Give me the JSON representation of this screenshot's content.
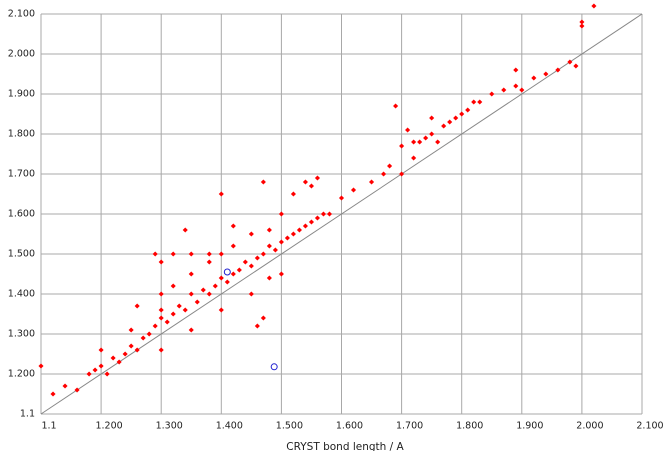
{
  "chart_data": {
    "type": "scatter",
    "x_label": "CRYST bond length / A",
    "xlim": [
      1.1,
      2.1
    ],
    "ylim": [
      1.1,
      2.1
    ],
    "xticks": [
      1.1,
      {
        "value": 1.2,
        "label": "1.200"
      },
      {
        "value": 1.3,
        "label": "1.300"
      },
      {
        "value": 1.4,
        "label": "1.400"
      },
      {
        "value": 1.5,
        "label": "1.500"
      },
      {
        "value": 1.6,
        "label": "1.600"
      },
      {
        "value": 1.7,
        "label": "1.700"
      },
      {
        "value": 1.8,
        "label": "1.800"
      },
      {
        "value": 1.9,
        "label": "1.900"
      },
      {
        "value": 2.0,
        "label": "2.000"
      },
      {
        "value": 2.1,
        "label": "2.100"
      }
    ],
    "yticks": [
      1.1,
      {
        "value": 1.2,
        "label": "1.200"
      },
      {
        "value": 1.3,
        "label": "1.300"
      },
      {
        "value": 1.4,
        "label": "1.400"
      },
      {
        "value": 1.5,
        "label": "1.500"
      },
      {
        "value": 1.6,
        "label": "1.600"
      },
      {
        "value": 1.7,
        "label": "1.700"
      },
      {
        "value": 1.8,
        "label": "1.800"
      },
      {
        "value": 1.9,
        "label": "1.900"
      },
      {
        "value": 2.0,
        "label": "2.000"
      },
      {
        "value": 2.1,
        "label": "2.100"
      }
    ],
    "grid": true,
    "series": [
      {
        "color": "#ff0000",
        "marker": "filled",
        "x": [
          1.1,
          1.12,
          1.14,
          1.16,
          1.18,
          1.19,
          1.2,
          1.21,
          1.22,
          1.23,
          1.24,
          1.25,
          1.26,
          1.27,
          1.28,
          1.29,
          1.3,
          1.3,
          1.31,
          1.32,
          1.33,
          1.34,
          1.35,
          1.36,
          1.37,
          1.38,
          1.39,
          1.4,
          1.41,
          1.42,
          1.43,
          1.44,
          1.45,
          1.46,
          1.47,
          1.48,
          1.49,
          1.5,
          1.51,
          1.52,
          1.53,
          1.54,
          1.55,
          1.56,
          1.57,
          1.58,
          1.2,
          1.25,
          1.3,
          1.32,
          1.35,
          1.38,
          1.4,
          1.42,
          1.45,
          1.48,
          1.29,
          1.32,
          1.35,
          1.38,
          1.3,
          1.35,
          1.4,
          1.45,
          1.48,
          1.5,
          1.47,
          1.46,
          1.4,
          1.47,
          1.5,
          1.52,
          1.54,
          1.56,
          1.55,
          1.42,
          1.34,
          1.3,
          1.26,
          1.6,
          1.62,
          1.65,
          1.67,
          1.68,
          1.7,
          1.72,
          1.73,
          1.74,
          1.75,
          1.76,
          1.77,
          1.78,
          1.79,
          1.8,
          1.75,
          1.72,
          1.7,
          1.71,
          1.69,
          1.81,
          1.83,
          1.85,
          1.87,
          1.89,
          1.9,
          1.92,
          1.94,
          1.96,
          1.98,
          1.99,
          1.89,
          1.82,
          2.0,
          2.0,
          2.02
        ],
        "values": [
          1.22,
          1.15,
          1.17,
          1.16,
          1.2,
          1.21,
          1.22,
          1.2,
          1.24,
          1.23,
          1.25,
          1.27,
          1.26,
          1.29,
          1.3,
          1.32,
          1.34,
          1.36,
          1.33,
          1.35,
          1.37,
          1.36,
          1.4,
          1.38,
          1.41,
          1.4,
          1.42,
          1.44,
          1.43,
          1.45,
          1.46,
          1.48,
          1.47,
          1.49,
          1.5,
          1.52,
          1.51,
          1.53,
          1.54,
          1.55,
          1.56,
          1.57,
          1.58,
          1.59,
          1.6,
          1.6,
          1.26,
          1.31,
          1.4,
          1.42,
          1.45,
          1.48,
          1.5,
          1.52,
          1.55,
          1.56,
          1.5,
          1.5,
          1.5,
          1.5,
          1.26,
          1.31,
          1.36,
          1.4,
          1.44,
          1.45,
          1.34,
          1.32,
          1.65,
          1.68,
          1.6,
          1.65,
          1.68,
          1.69,
          1.67,
          1.57,
          1.56,
          1.48,
          1.37,
          1.64,
          1.66,
          1.68,
          1.7,
          1.72,
          1.7,
          1.74,
          1.78,
          1.79,
          1.8,
          1.78,
          1.82,
          1.83,
          1.84,
          1.85,
          1.84,
          1.78,
          1.77,
          1.81,
          1.87,
          1.86,
          1.88,
          1.9,
          1.91,
          1.92,
          1.91,
          1.94,
          1.95,
          1.96,
          1.98,
          1.97,
          1.96,
          1.88,
          2.07,
          2.08,
          2.12
        ]
      },
      {
        "color": "#2020d0",
        "marker": "hollow",
        "x": [
          1.41,
          1.488
        ],
        "values": [
          1.455,
          1.218
        ]
      }
    ]
  }
}
